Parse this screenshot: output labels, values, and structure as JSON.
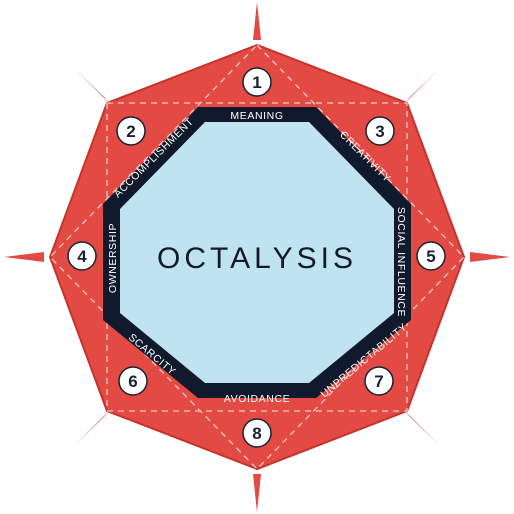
{
  "diagram": {
    "title": "OCTALYSIS",
    "colors": {
      "outer_fill": "#e24a43",
      "outer_stroke": "#c8322c",
      "band": "#111a2c",
      "center": "#bfe3f1",
      "dash": "#f7c9c5",
      "node_fill": "#ffffff",
      "node_stroke": "#1a2233",
      "spike": "#e24a43"
    },
    "nodes": [
      {
        "number": "1"
      },
      {
        "number": "2"
      },
      {
        "number": "3"
      },
      {
        "number": "4"
      },
      {
        "number": "5"
      },
      {
        "number": "6"
      },
      {
        "number": "7"
      },
      {
        "number": "8"
      }
    ],
    "side_labels": [
      {
        "text": "MEANING"
      },
      {
        "text": "CREATIVITY"
      },
      {
        "text": "SOCIAL INFLUENCE"
      },
      {
        "text": "UNPREDICTABILITY"
      },
      {
        "text": "AVOIDANCE"
      },
      {
        "text": "SCARCITY"
      },
      {
        "text": "OWNERSHIP"
      },
      {
        "text": "ACCOMPLISHMENT"
      }
    ]
  }
}
